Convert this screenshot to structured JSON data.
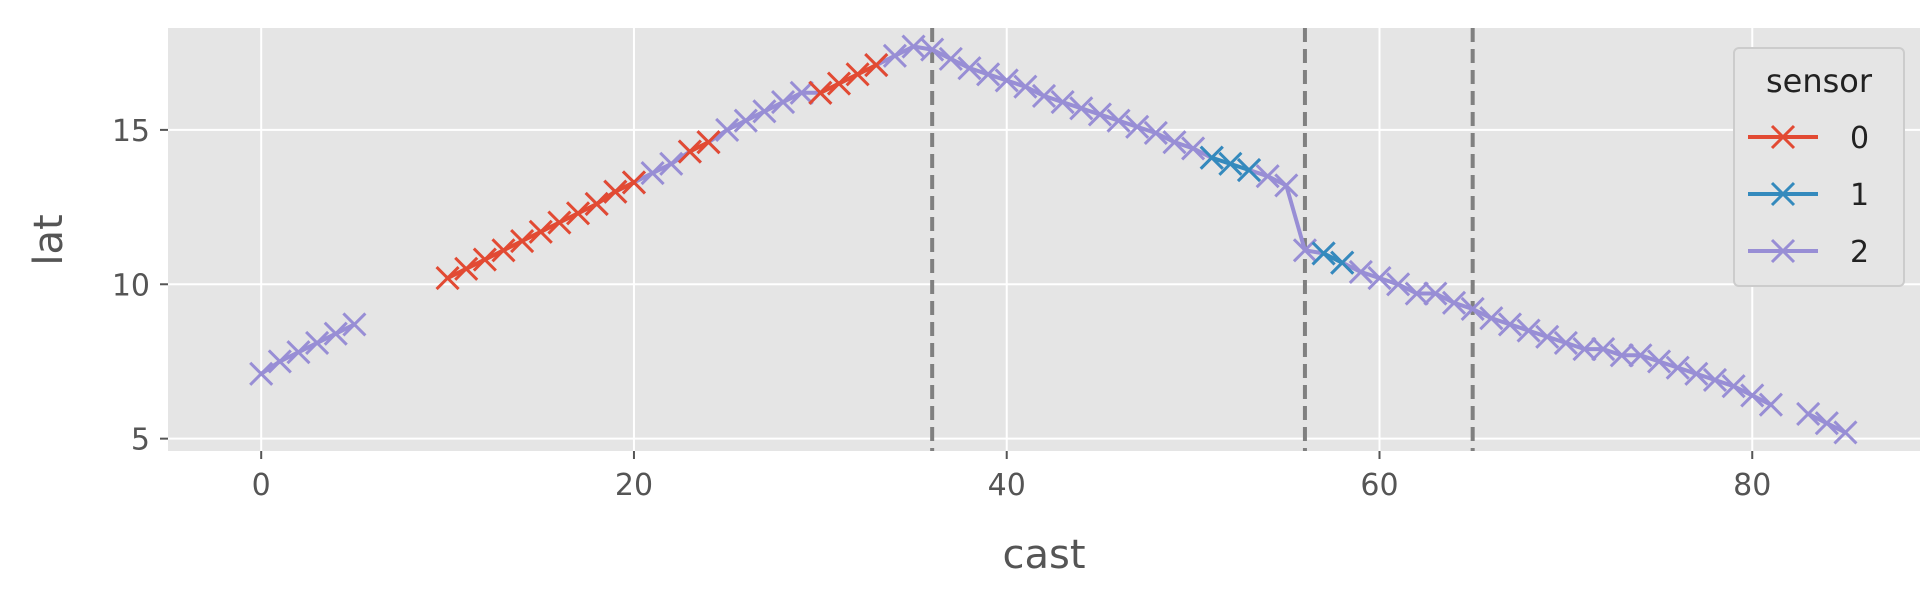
{
  "chart_data": {
    "type": "line",
    "xlabel": "cast",
    "ylabel": "lat",
    "xlim": [
      -5,
      89
    ],
    "ylim": [
      4.6,
      18.3
    ],
    "x_ticks": [
      0,
      20,
      40,
      60,
      80
    ],
    "y_ticks": [
      5,
      10,
      15
    ],
    "grid": true,
    "legend": {
      "title": "sensor",
      "position": "top-right"
    },
    "vlines": [
      36,
      56,
      65
    ],
    "colors": {
      "background": "#e5e5e5",
      "grid": "#ffffff",
      "vline": "#808080",
      "sensor_0": "#e24a33",
      "sensor_1": "#348abd",
      "sensor_2": "#988ed5"
    },
    "series": [
      {
        "name": "0",
        "color": "#e24a33",
        "segments": [
          [
            [
              10,
              10.2
            ],
            [
              11,
              10.5
            ],
            [
              12,
              10.8
            ],
            [
              13,
              11.1
            ],
            [
              14,
              11.4
            ],
            [
              15,
              11.7
            ],
            [
              16,
              12.0
            ],
            [
              17,
              12.3
            ],
            [
              18,
              12.6
            ],
            [
              19,
              13.0
            ],
            [
              20,
              13.3
            ]
          ],
          [
            [
              23,
              14.3
            ],
            [
              24,
              14.6
            ]
          ],
          [
            [
              30,
              16.2
            ],
            [
              31,
              16.5
            ],
            [
              32,
              16.8
            ],
            [
              33,
              17.1
            ]
          ]
        ]
      },
      {
        "name": "1",
        "color": "#348abd",
        "segments": [
          [
            [
              51,
              14.1
            ],
            [
              52,
              13.9
            ],
            [
              53,
              13.7
            ]
          ],
          [
            [
              57,
              11.0
            ],
            [
              58,
              10.7
            ]
          ]
        ]
      },
      {
        "name": "2",
        "color": "#988ed5",
        "segments": [
          [
            [
              0,
              7.1
            ],
            [
              1,
              7.5
            ],
            [
              2,
              7.8
            ],
            [
              3,
              8.1
            ],
            [
              4,
              8.4
            ],
            [
              5,
              8.7
            ]
          ],
          [
            [
              18,
              12.6
            ],
            [
              19,
              13.0
            ],
            [
              20,
              13.3
            ],
            [
              21,
              13.6
            ],
            [
              22,
              13.9
            ],
            [
              23,
              14.3
            ]
          ],
          [
            [
              24,
              14.6
            ],
            [
              25,
              15.0
            ],
            [
              26,
              15.3
            ],
            [
              27,
              15.6
            ],
            [
              28,
              15.9
            ],
            [
              29,
              16.2
            ],
            [
              30,
              16.2
            ]
          ],
          [
            [
              33,
              17.1
            ],
            [
              34,
              17.4
            ],
            [
              35,
              17.7
            ],
            [
              36,
              17.6
            ],
            [
              37,
              17.3
            ],
            [
              38,
              17.0
            ],
            [
              39,
              16.8
            ],
            [
              40,
              16.6
            ],
            [
              41,
              16.4
            ],
            [
              42,
              16.1
            ],
            [
              43,
              15.9
            ],
            [
              44,
              15.7
            ],
            [
              45,
              15.5
            ],
            [
              46,
              15.3
            ],
            [
              47,
              15.1
            ],
            [
              48,
              14.9
            ],
            [
              49,
              14.6
            ],
            [
              50,
              14.4
            ],
            [
              51,
              14.1
            ]
          ],
          [
            [
              53,
              13.7
            ],
            [
              54,
              13.5
            ],
            [
              55,
              13.2
            ],
            [
              56,
              11.1
            ],
            [
              57,
              11.0
            ]
          ],
          [
            [
              58,
              10.7
            ],
            [
              59,
              10.4
            ],
            [
              60,
              10.2
            ],
            [
              61,
              10.0
            ],
            [
              62,
              9.7
            ],
            [
              63,
              9.7
            ],
            [
              64,
              9.4
            ],
            [
              65,
              9.2
            ],
            [
              66,
              8.9
            ],
            [
              67,
              8.7
            ],
            [
              68,
              8.5
            ],
            [
              69,
              8.3
            ],
            [
              70,
              8.1
            ],
            [
              71,
              7.9
            ],
            [
              72,
              7.9
            ],
            [
              73,
              7.7
            ],
            [
              74,
              7.7
            ],
            [
              75,
              7.5
            ],
            [
              76,
              7.3
            ],
            [
              77,
              7.1
            ],
            [
              78,
              6.9
            ],
            [
              79,
              6.7
            ],
            [
              80,
              6.4
            ],
            [
              81,
              6.1
            ]
          ],
          [
            [
              83,
              5.8
            ],
            [
              84,
              5.5
            ],
            [
              85,
              5.2
            ]
          ]
        ]
      }
    ]
  }
}
